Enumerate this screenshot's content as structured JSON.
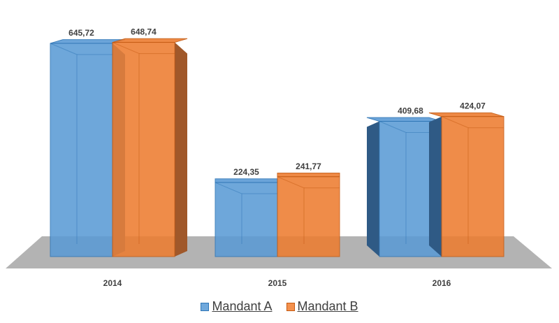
{
  "chart_data": {
    "type": "bar",
    "title": "",
    "xlabel": "",
    "ylabel": "",
    "categories": [
      "2014",
      "2015",
      "2016"
    ],
    "series": [
      {
        "name": "Mandant A",
        "values": [
          645.72,
          224.35,
          409.68
        ],
        "labels": [
          "645,72",
          "224,35",
          "409,68"
        ],
        "color": "#5b9bd5"
      },
      {
        "name": "Mandant B",
        "values": [
          648.74,
          241.77,
          424.07
        ],
        "labels": [
          "648,74",
          "241,77",
          "424,07"
        ],
        "color": "#ed7d31"
      }
    ],
    "ylim": [
      0,
      650
    ],
    "grid": false,
    "legend_position": "bottom",
    "style": "3d-clustered-column"
  }
}
